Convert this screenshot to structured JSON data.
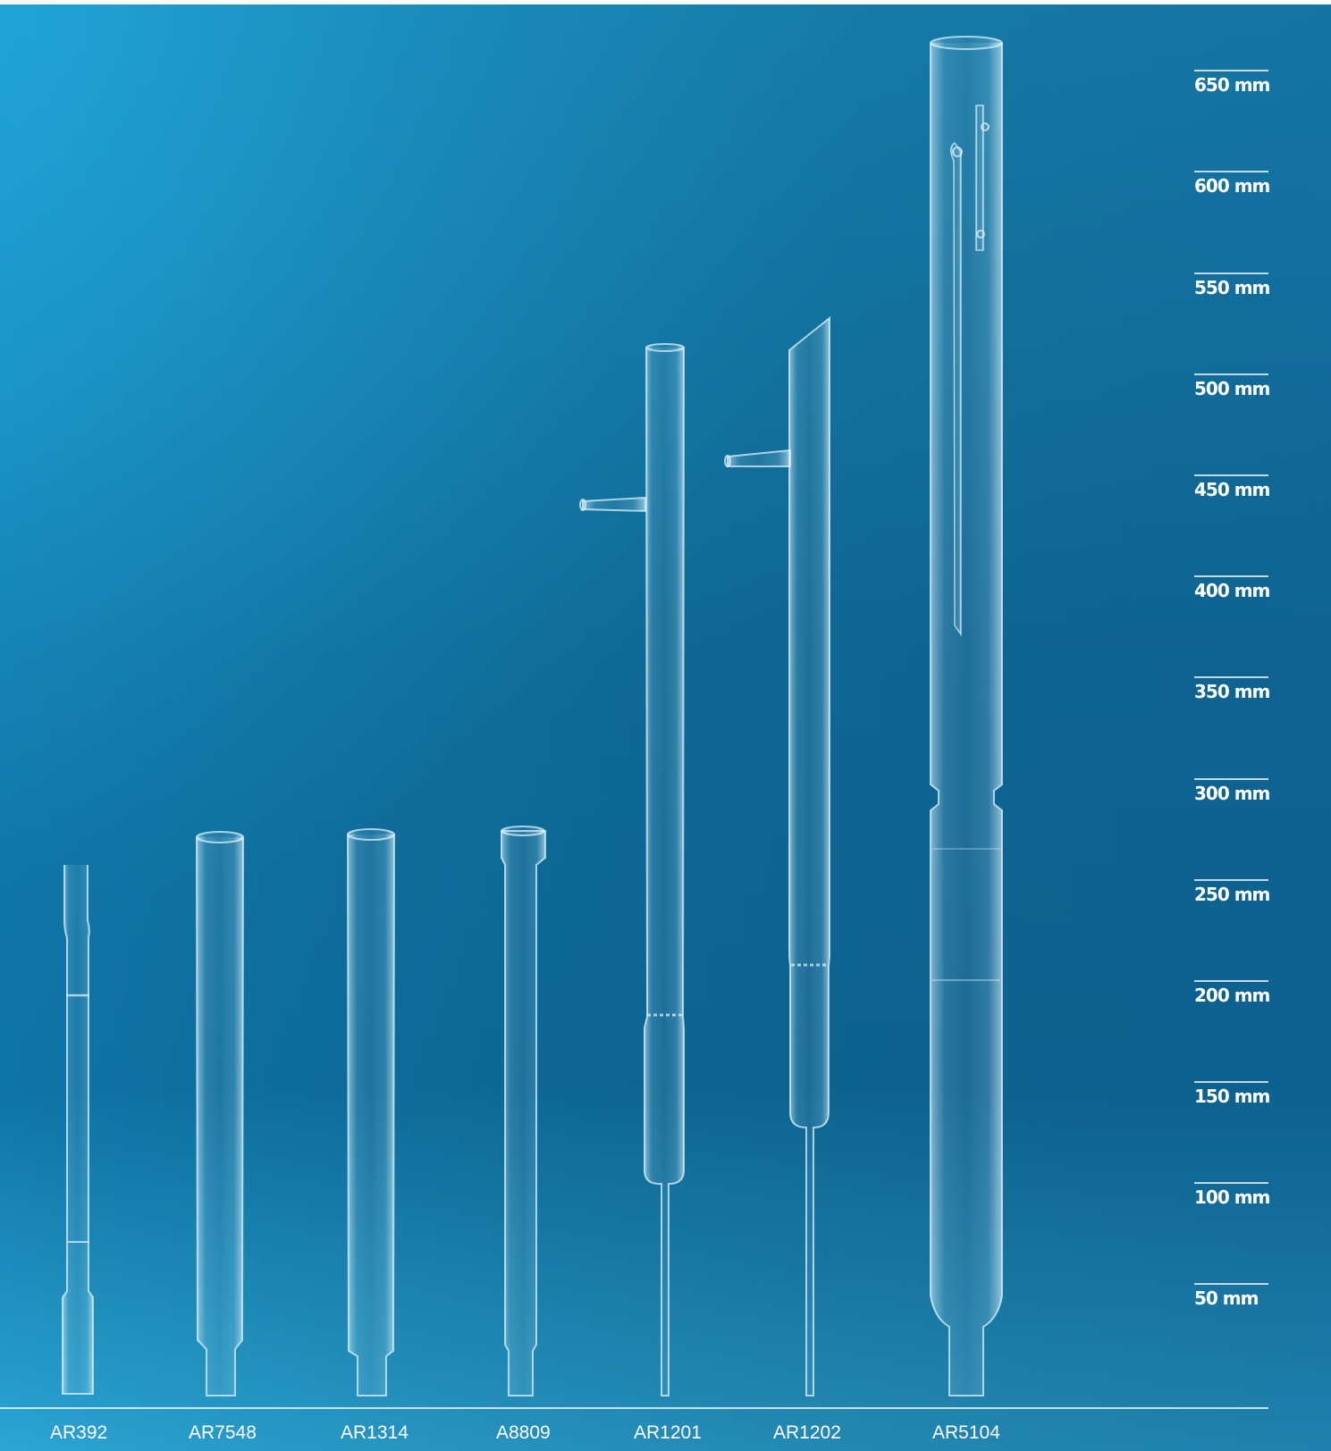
{
  "photo": {
    "background_top": "#1b8cc0",
    "background_mid": "#0e6d9f",
    "background_bottom": "#2aa6d4",
    "glass_color": "#d8f1fb"
  },
  "scale_labels": [
    "650 mm",
    "600 mm",
    "550 mm",
    "500 mm",
    "450 mm",
    "400 mm",
    "350 mm",
    "300 mm",
    "250 mm",
    "200 mm",
    "150 mm",
    "100 mm",
    "50 mm"
  ],
  "items": [
    {
      "code": "AR392"
    },
    {
      "code": "AR7548"
    },
    {
      "code": "AR1314"
    },
    {
      "code": "A8809"
    },
    {
      "code": "AR1201"
    },
    {
      "code": "AR1202"
    },
    {
      "code": "AR5104"
    }
  ]
}
